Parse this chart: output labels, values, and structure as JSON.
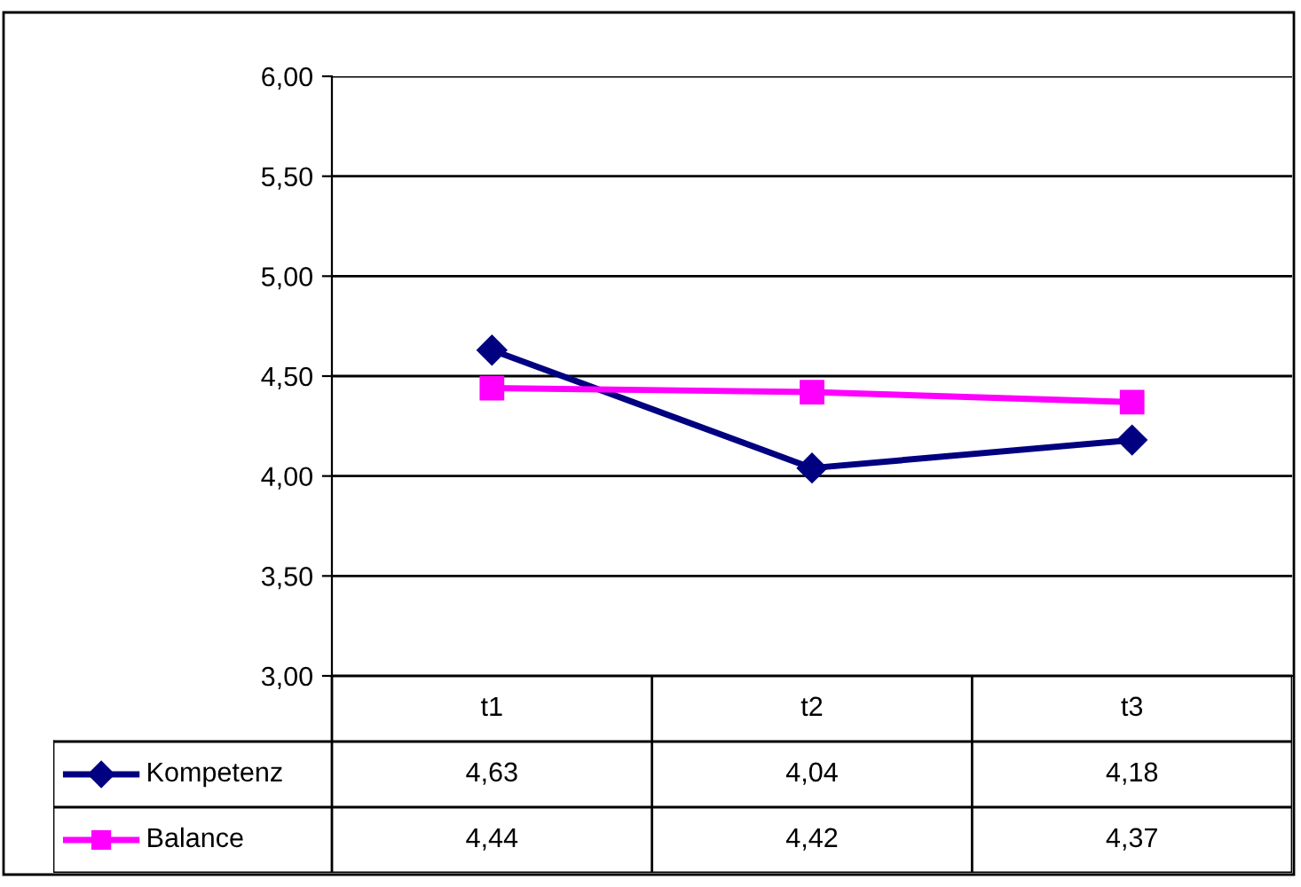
{
  "chart_data": {
    "type": "line",
    "categories": [
      "t1",
      "t2",
      "t3"
    ],
    "series": [
      {
        "name": "Kompetenz",
        "color": "#000080",
        "marker": "diamond",
        "values": [
          4.63,
          4.04,
          4.18
        ],
        "value_labels": [
          "4,63",
          "4,04",
          "4,18"
        ]
      },
      {
        "name": "Balance",
        "color": "#ff00ff",
        "marker": "square",
        "values": [
          4.44,
          4.42,
          4.37
        ],
        "value_labels": [
          "4,44",
          "4,42",
          "4,37"
        ]
      }
    ],
    "ylim": [
      3,
      6
    ],
    "yticks": [
      {
        "value": 3,
        "label": "3,00"
      },
      {
        "value": 3.5,
        "label": "3,50"
      },
      {
        "value": 4,
        "label": "4,00"
      },
      {
        "value": 4.5,
        "label": "4,50"
      },
      {
        "value": 5,
        "label": "5,00"
      },
      {
        "value": 5.5,
        "label": "5,50"
      },
      {
        "value": 6,
        "label": "6,00"
      }
    ],
    "grid": "y",
    "legend": "bottom",
    "line_style": "solid"
  }
}
